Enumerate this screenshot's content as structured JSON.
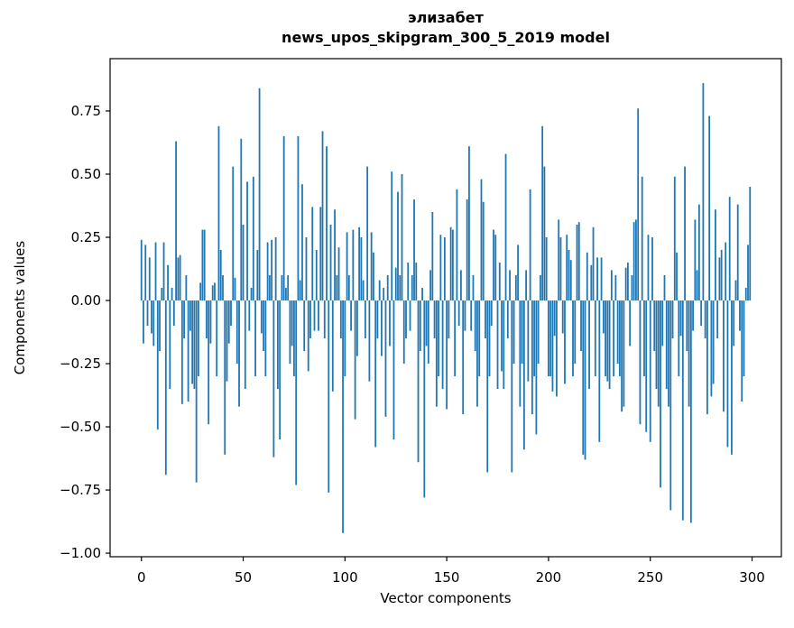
{
  "chart_data": {
    "type": "bar",
    "title_line1": "элизабет",
    "title_line2": "news_upos_skipgram_300_5_2019 model",
    "xlabel": "Vector components",
    "ylabel": "Components values",
    "bar_color": "#1f77b4",
    "axis_color": "#000000",
    "background_color": "#ffffff",
    "xlim": [
      -15.4,
      314.4
    ],
    "ylim": [
      -1.014,
      0.957
    ],
    "grid": false,
    "legend": null,
    "x_ticks": [
      {
        "value": 0,
        "label": "0"
      },
      {
        "value": 50,
        "label": "50"
      },
      {
        "value": 100,
        "label": "100"
      },
      {
        "value": 150,
        "label": "150"
      },
      {
        "value": 200,
        "label": "200"
      },
      {
        "value": 250,
        "label": "250"
      },
      {
        "value": 300,
        "label": "300"
      }
    ],
    "y_ticks": [
      {
        "value": 0.75,
        "label": "0.75"
      },
      {
        "value": 0.5,
        "label": "0.50"
      },
      {
        "value": 0.25,
        "label": "0.25"
      },
      {
        "value": 0.0,
        "label": "0.00"
      },
      {
        "value": -0.25,
        "label": "−0.25"
      },
      {
        "value": -0.5,
        "label": "−0.50"
      },
      {
        "value": -0.75,
        "label": "−0.75"
      },
      {
        "value": -1.0,
        "label": "−1.00"
      }
    ],
    "bar_width": 0.8,
    "values": [
      0.24,
      -0.17,
      0.22,
      -0.1,
      0.17,
      -0.13,
      -0.18,
      0.23,
      -0.51,
      -0.2,
      0.05,
      0.23,
      -0.69,
      0.14,
      -0.35,
      0.05,
      -0.1,
      0.63,
      0.17,
      0.18,
      -0.41,
      -0.15,
      0.1,
      -0.4,
      -0.12,
      -0.33,
      -0.35,
      -0.72,
      -0.3,
      0.07,
      0.28,
      0.28,
      -0.15,
      -0.49,
      -0.17,
      0.06,
      0.07,
      -0.3,
      0.69,
      0.2,
      0.1,
      -0.61,
      -0.32,
      -0.17,
      -0.1,
      0.53,
      0.09,
      -0.25,
      -0.42,
      0.64,
      0.3,
      -0.35,
      0.47,
      -0.12,
      0.05,
      0.49,
      -0.3,
      0.2,
      0.84,
      -0.13,
      -0.2,
      -0.3,
      0.23,
      0.1,
      0.24,
      -0.62,
      0.25,
      -0.35,
      -0.55,
      0.1,
      0.65,
      0.05,
      0.1,
      -0.25,
      -0.18,
      -0.3,
      -0.73,
      0.65,
      0.08,
      0.46,
      -0.2,
      0.25,
      -0.28,
      -0.15,
      0.37,
      -0.12,
      0.2,
      -0.12,
      0.37,
      0.67,
      -0.15,
      0.61,
      -0.76,
      0.3,
      -0.36,
      0.36,
      0.1,
      0.21,
      -0.15,
      -0.92,
      -0.3,
      0.27,
      0.1,
      -0.12,
      0.28,
      -0.47,
      -0.22,
      0.29,
      0.25,
      0.08,
      -0.15,
      0.53,
      -0.32,
      0.27,
      0.19,
      -0.58,
      -0.15,
      0.08,
      -0.22,
      0.05,
      -0.46,
      0.1,
      -0.18,
      0.51,
      -0.55,
      0.13,
      0.43,
      0.1,
      0.5,
      -0.25,
      -0.15,
      0.15,
      -0.12,
      0.1,
      0.4,
      0.15,
      -0.64,
      -0.2,
      0.05,
      -0.78,
      -0.18,
      -0.25,
      0.12,
      0.35,
      -0.15,
      -0.42,
      -0.3,
      0.26,
      -0.35,
      0.25,
      -0.43,
      -0.15,
      0.29,
      0.28,
      -0.3,
      0.44,
      -0.1,
      0.12,
      -0.45,
      -0.12,
      0.4,
      0.61,
      -0.12,
      0.1,
      -0.2,
      -0.42,
      -0.3,
      0.48,
      0.39,
      -0.15,
      -0.68,
      -0.3,
      -0.1,
      0.28,
      0.26,
      -0.35,
      0.15,
      -0.28,
      -0.35,
      0.58,
      -0.15,
      0.12,
      -0.68,
      -0.25,
      0.1,
      0.22,
      -0.42,
      -0.25,
      -0.59,
      0.12,
      -0.32,
      0.44,
      -0.45,
      -0.3,
      -0.53,
      -0.25,
      0.1,
      0.69,
      0.53,
      0.25,
      -0.3,
      -0.3,
      -0.36,
      -0.14,
      -0.38,
      0.32,
      0.25,
      -0.13,
      -0.33,
      0.26,
      0.2,
      0.16,
      -0.3,
      -0.25,
      0.3,
      0.31,
      -0.2,
      -0.61,
      -0.63,
      0.19,
      -0.35,
      0.14,
      0.29,
      -0.3,
      0.17,
      -0.56,
      0.17,
      -0.13,
      -0.3,
      -0.32,
      -0.35,
      0.12,
      -0.3,
      0.1,
      -0.25,
      -0.3,
      -0.44,
      -0.42,
      0.13,
      0.15,
      -0.18,
      0.1,
      0.31,
      0.32,
      0.76,
      -0.49,
      0.49,
      -0.3,
      -0.52,
      0.26,
      -0.56,
      0.25,
      -0.2,
      -0.35,
      -0.42,
      -0.74,
      -0.18,
      0.1,
      -0.35,
      -0.42,
      -0.83,
      -0.15,
      0.49,
      0.19,
      -0.3,
      -0.14,
      -0.87,
      0.53,
      -0.2,
      -0.42,
      -0.88,
      -0.12,
      0.32,
      0.12,
      0.38,
      -0.1,
      0.86,
      -0.15,
      -0.45,
      0.73,
      -0.38,
      -0.33,
      0.36,
      -0.15,
      0.17,
      0.2,
      -0.44,
      0.23,
      -0.58,
      0.41,
      -0.61,
      -0.18,
      0.08,
      0.38,
      -0.12,
      -0.4,
      -0.3,
      0.05,
      0.22,
      0.45
    ]
  }
}
